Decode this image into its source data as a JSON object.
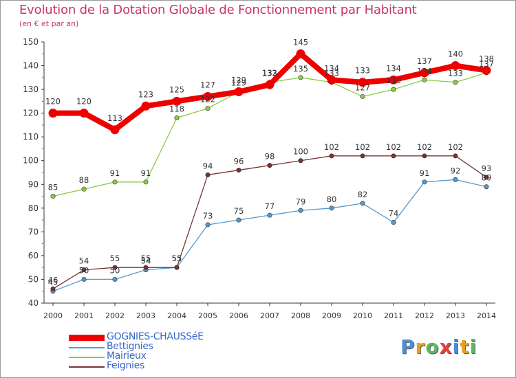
{
  "title": "Evolution de la Dotation Globale de Fonctionnement par Habitant",
  "subtitle": "(en € et par an)",
  "logo": {
    "letters": [
      "P",
      "r",
      "o",
      "x",
      "i",
      "t",
      "i"
    ],
    "colors": [
      "#4d8fd6",
      "#e8a020",
      "#5cb85c",
      "#e84040",
      "#4d8fd6",
      "#e8a020",
      "#5cb85c"
    ]
  },
  "chart_data": {
    "type": "line",
    "title": "Evolution de la Dotation Globale de Fonctionnement par Habitant",
    "subtitle": "(en € et par an)",
    "xlabel": "",
    "ylabel": "",
    "ylim": [
      40,
      150
    ],
    "yticks": [
      40,
      50,
      60,
      70,
      80,
      90,
      100,
      110,
      120,
      130,
      140,
      150
    ],
    "x": [
      "2000",
      "2001",
      "2002",
      "2003",
      "2004",
      "2005",
      "2006",
      "2007",
      "2008",
      "2009",
      "2010",
      "2011",
      "2012",
      "2013",
      "2014"
    ],
    "grid": false,
    "legend_position": "bottom-left",
    "series": [
      {
        "name": "GOGNIES-CHAUSSéE",
        "color": "#ee0000",
        "label_color": "#3366cc",
        "thick": true,
        "values": [
          120,
          120,
          113,
          123,
          125,
          127,
          129,
          132,
          145,
          134,
          133,
          134,
          137,
          140,
          138
        ]
      },
      {
        "name": "Bettignies",
        "color": "#5599cc",
        "label_color": "#3366cc",
        "thick": false,
        "values": [
          45,
          50,
          50,
          54,
          55,
          73,
          75,
          77,
          79,
          80,
          82,
          74,
          91,
          92,
          89
        ]
      },
      {
        "name": "Mairieux",
        "color": "#88cc44",
        "label_color": "#3366cc",
        "thick": false,
        "values": [
          85,
          88,
          91,
          91,
          118,
          122,
          129,
          133,
          135,
          133,
          127,
          130,
          134,
          133,
          137
        ]
      },
      {
        "name": "Feignies",
        "color": "#773333",
        "label_color": "#3366cc",
        "thick": false,
        "values": [
          46,
          54,
          55,
          55,
          55,
          94,
          96,
          98,
          100,
          102,
          102,
          102,
          102,
          102,
          93
        ]
      }
    ]
  }
}
